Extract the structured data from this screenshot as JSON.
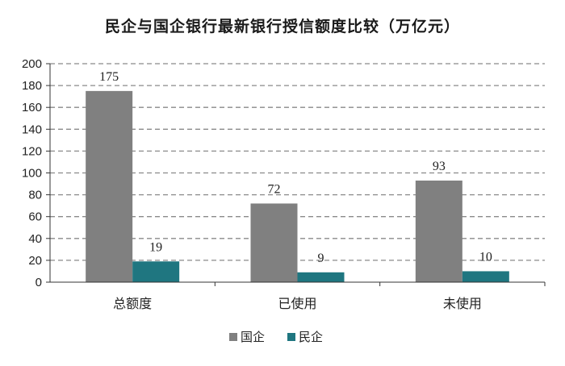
{
  "chart_data": {
    "type": "bar",
    "title": "民企与国企银行最新银行授信额度比较（万亿元）",
    "categories": [
      "总额度",
      "已使用",
      "未使用"
    ],
    "series": [
      {
        "name": "国企",
        "values": [
          175,
          72,
          93
        ],
        "color": "#808080"
      },
      {
        "name": "民企",
        "values": [
          19,
          9,
          10
        ],
        "color": "#1f7680"
      }
    ],
    "ylim": [
      0,
      200
    ],
    "yticks": [
      0,
      20,
      40,
      60,
      80,
      100,
      120,
      140,
      160,
      180,
      200
    ],
    "xlabel": "",
    "ylabel": "",
    "grid": true,
    "grid_style": "dashed",
    "legend_position": "bottom"
  }
}
